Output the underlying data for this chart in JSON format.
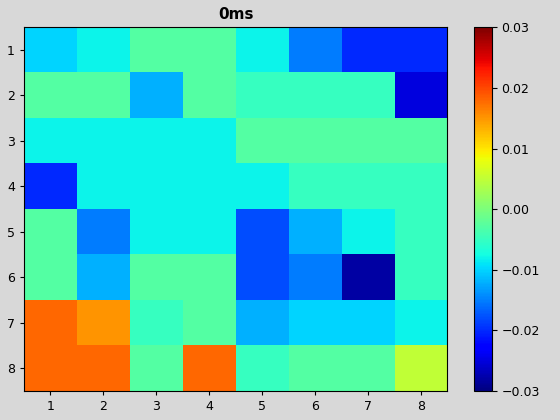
{
  "title": "0ms",
  "grid_data": [
    [
      -0.01,
      -0.008,
      -0.003,
      -0.003,
      -0.008,
      -0.015,
      -0.02,
      -0.02
    ],
    [
      -0.003,
      -0.003,
      -0.012,
      -0.003,
      -0.005,
      -0.005,
      -0.005,
      -0.025
    ],
    [
      -0.008,
      -0.008,
      -0.008,
      -0.008,
      -0.003,
      -0.003,
      -0.003,
      -0.003
    ],
    [
      -0.02,
      -0.008,
      -0.008,
      -0.008,
      -0.008,
      -0.005,
      -0.005,
      -0.005
    ],
    [
      -0.003,
      -0.015,
      -0.008,
      -0.008,
      -0.018,
      -0.012,
      -0.008,
      -0.005
    ],
    [
      -0.003,
      -0.012,
      -0.003,
      -0.003,
      -0.018,
      -0.015,
      -0.028,
      -0.005
    ],
    [
      0.018,
      0.015,
      -0.005,
      -0.003,
      -0.012,
      -0.01,
      -0.01,
      -0.008
    ],
    [
      0.018,
      0.018,
      -0.003,
      0.018,
      -0.005,
      -0.003,
      -0.003,
      0.005
    ]
  ],
  "vmin": -0.03,
  "vmax": 0.03,
  "colormap": "jet",
  "xticks": [
    1,
    2,
    3,
    4,
    5,
    6,
    7,
    8
  ],
  "yticks": [
    1,
    2,
    3,
    4,
    5,
    6,
    7,
    8
  ],
  "colorbar_ticks": [
    -0.03,
    -0.02,
    -0.01,
    0,
    0.01,
    0.02,
    0.03
  ],
  "figsize": [
    5.6,
    4.2
  ],
  "dpi": 100,
  "bg_color": "#d8d8d8"
}
